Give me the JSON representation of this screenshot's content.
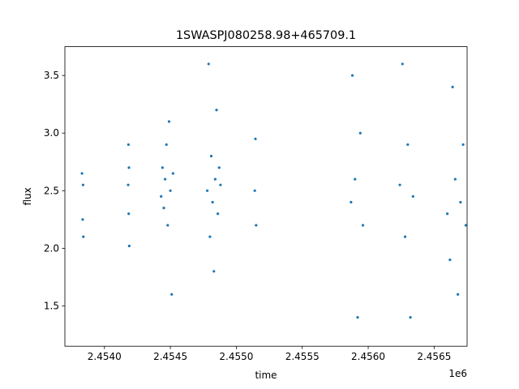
{
  "chart_data": {
    "type": "scatter",
    "title": "1SWASPJ080258.98+465709.1",
    "xlabel": "time",
    "ylabel": "flux",
    "x_offset_label": "1e6",
    "xlim": [
      2453700,
      2456750
    ],
    "ylim": [
      1.15,
      3.75
    ],
    "grid": false,
    "marker_color": "#1f77b4",
    "x_ticks": [
      {
        "value": 2454000,
        "label": "2.4540"
      },
      {
        "value": 2454500,
        "label": "2.4545"
      },
      {
        "value": 2455000,
        "label": "2.4550"
      },
      {
        "value": 2455500,
        "label": "2.4555"
      },
      {
        "value": 2456000,
        "label": "2.4560"
      },
      {
        "value": 2456500,
        "label": "2.4565"
      }
    ],
    "y_ticks": [
      {
        "value": 1.5,
        "label": "1.5"
      },
      {
        "value": 2.0,
        "label": "2.0"
      },
      {
        "value": 2.5,
        "label": "2.5"
      },
      {
        "value": 3.0,
        "label": "3.0"
      },
      {
        "value": 3.5,
        "label": "3.5"
      }
    ],
    "series": [
      {
        "x": [
          2453830,
          2453835,
          2453838,
          2453840,
          2454180,
          2454182,
          2454184,
          2454186,
          2454188,
          2454430,
          2454440,
          2454450,
          2454460,
          2454470,
          2454480,
          2454490,
          2454500,
          2454510,
          2454520,
          2454780,
          2454790,
          2454800,
          2454810,
          2454820,
          2454830,
          2454840,
          2454850,
          2454860,
          2454870,
          2454880,
          2455140,
          2455145,
          2455150,
          2455870,
          2455880,
          2455900,
          2455920,
          2455940,
          2455960,
          2456240,
          2456260,
          2456280,
          2456300,
          2456320,
          2456340,
          2456600,
          2456620,
          2456640,
          2456660,
          2456680,
          2456700,
          2456720,
          2456740
        ],
        "y": [
          2.65,
          2.25,
          2.55,
          2.1,
          2.55,
          2.9,
          2.3,
          2.7,
          2.02,
          2.45,
          2.7,
          2.35,
          2.6,
          2.9,
          2.2,
          3.1,
          2.5,
          1.6,
          2.65,
          2.5,
          3.6,
          2.1,
          2.8,
          2.4,
          1.8,
          2.6,
          3.2,
          2.3,
          2.7,
          2.55,
          2.5,
          2.95,
          2.2,
          2.4,
          3.5,
          2.6,
          1.4,
          3.0,
          2.2,
          2.55,
          3.6,
          2.1,
          2.9,
          1.4,
          2.45,
          2.3,
          1.9,
          3.4,
          2.6,
          1.6,
          2.4,
          2.9,
          2.2
        ]
      }
    ]
  }
}
